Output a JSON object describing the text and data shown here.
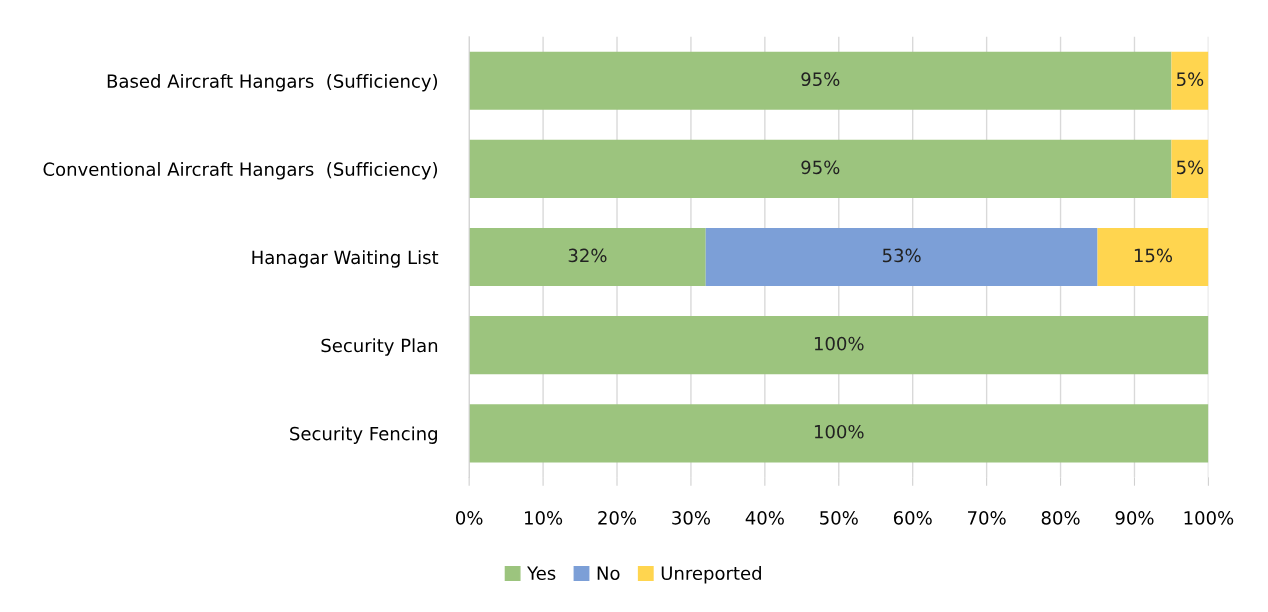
{
  "chart_data": {
    "type": "bar",
    "orientation": "horizontal",
    "stacked": true,
    "categories": [
      "Based Aircraft Hangars  (Sufficiency)",
      "Conventional Aircraft Hangars  (Sufficiency)",
      "Hanagar Waiting List",
      "Security Plan",
      "Security Fencing"
    ],
    "series": [
      {
        "name": "Yes",
        "color": "#9cc47e",
        "values": [
          95,
          95,
          32,
          100,
          100
        ],
        "value_labels": [
          "95%",
          "95%",
          "32%",
          "100%",
          "100%"
        ]
      },
      {
        "name": "No",
        "color": "#7c9fd7",
        "values": [
          null,
          null,
          53,
          null,
          null
        ],
        "value_labels": [
          null,
          null,
          "53%",
          null,
          null
        ]
      },
      {
        "name": "Unreported",
        "color": "#ffd54f",
        "values": [
          5,
          5,
          15,
          null,
          null
        ],
        "value_labels": [
          "5%",
          "5%",
          "15%",
          null,
          null
        ]
      }
    ],
    "xlim": [
      0,
      100
    ],
    "xticks": [
      {
        "value": 0,
        "label": "0%"
      },
      {
        "value": 10,
        "label": "10%"
      },
      {
        "value": 20,
        "label": "20%"
      },
      {
        "value": 30,
        "label": "30%"
      },
      {
        "value": 40,
        "label": "40%"
      },
      {
        "value": 50,
        "label": "50%"
      },
      {
        "value": 60,
        "label": "60%"
      },
      {
        "value": 70,
        "label": "70%"
      },
      {
        "value": 80,
        "label": "80%"
      },
      {
        "value": 90,
        "label": "90%"
      },
      {
        "value": 100,
        "label": "100%"
      }
    ],
    "grid": "x",
    "legend": "bottom"
  }
}
